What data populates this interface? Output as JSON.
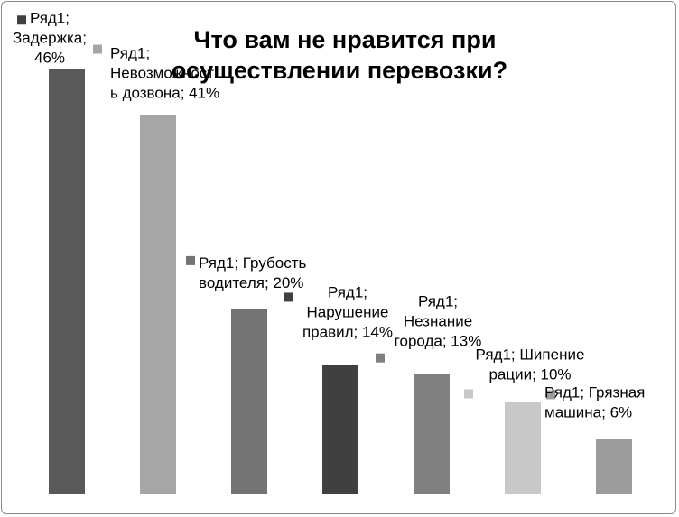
{
  "chart_data": {
    "type": "bar",
    "title": "Что вам не нравится при осуществлении перевозки?",
    "series": [
      {
        "name": "Ряд1",
        "values": [
          46,
          41,
          20,
          14,
          13,
          10,
          6
        ]
      }
    ],
    "categories": [
      "Задержка",
      "Невозможность дозвона",
      "Грубость водителя",
      "Нарушение правил",
      "Незнание города",
      "Шипение рации",
      "Грязная машина"
    ],
    "value_format": "percent",
    "ylim": [
      0,
      47
    ],
    "grid": false,
    "legend": "none",
    "bar_colors": [
      "#595959",
      "#a6a6a6",
      "#737373",
      "#404040",
      "#808080",
      "#c8c8c8",
      "#9c9c9c"
    ],
    "marker_colors": [
      "#404040",
      "#a6a6a6",
      "#737373",
      "#404040",
      "#808080",
      "#c8c8c8",
      "#9c9c9c"
    ],
    "data_labels": [
      [
        "Ряд1;",
        "Задержка;",
        "46%"
      ],
      [
        "Ряд1;",
        "Невозможност",
        "ь дозвона; 41%"
      ],
      [
        "Ряд1; Грубость",
        "водителя; 20%"
      ],
      [
        "Ряд1;",
        "Нарушение",
        "правил; 14%"
      ],
      [
        "Ряд1;",
        "Незнание",
        "города; 13%"
      ],
      [
        "Ряд1; Шипение",
        "рации; 10%"
      ],
      [
        "Ряд1; Грязная",
        "машина; 6%"
      ]
    ]
  }
}
